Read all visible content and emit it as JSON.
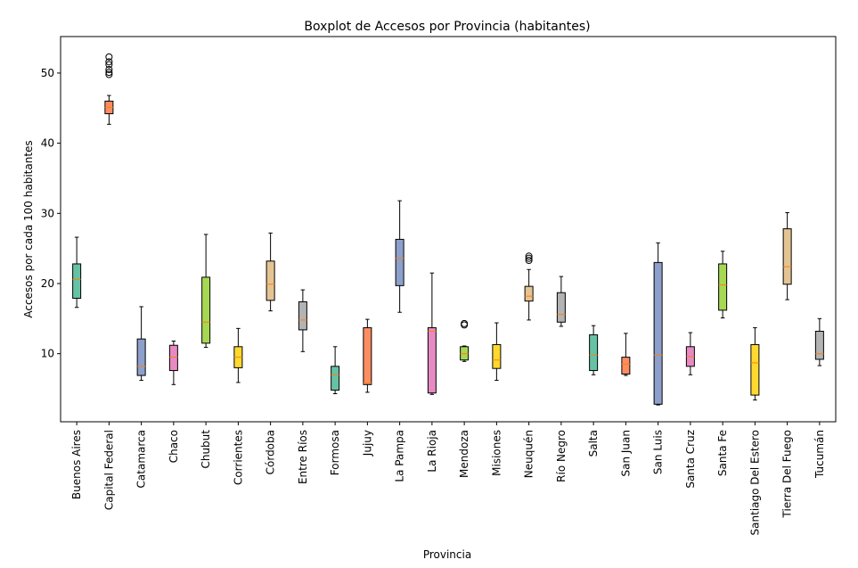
{
  "chart_data": {
    "type": "boxplot",
    "title": "Boxplot de Accesos por Provincia (habitantes)",
    "xlabel": "Provincia",
    "ylabel": "Accesos por cada 100 habitantes",
    "ylim": [
      0.3,
      55.2
    ],
    "yticks": [
      10,
      20,
      30,
      40,
      50
    ],
    "grid": false,
    "legend": "none",
    "categories": [
      "Buenos Aires",
      "Capital Federal",
      "Catamarca",
      "Chaco",
      "Chubut",
      "Corrientes",
      "Córdoba",
      "Entre Ríos",
      "Formosa",
      "Jujuy",
      "La Pampa",
      "La Rioja",
      "Mendoza",
      "Misiones",
      "Neuquén",
      "Río Negro",
      "Salta",
      "San Juan",
      "San Luis",
      "Santa Cruz",
      "Santa Fe",
      "Santiago Del Estero",
      "Tierra Del Fuego",
      "Tucumán"
    ],
    "colors": [
      "#66c2a5",
      "#fc8d62",
      "#8da0cb",
      "#e78ac3",
      "#a6d854",
      "#ffd92f",
      "#e5c494",
      "#b3b3b3",
      "#66c2a5",
      "#fc8d62",
      "#8da0cb",
      "#e78ac3",
      "#a6d854",
      "#ffd92f",
      "#e5c494",
      "#b3b3b3",
      "#66c2a5",
      "#fc8d62",
      "#8da0cb",
      "#e78ac3",
      "#a6d854",
      "#ffd92f",
      "#e5c494",
      "#b3b3b3"
    ],
    "median_color": "#ff7f0e",
    "boxes": [
      {
        "whislo": 16.6,
        "q1": 17.9,
        "med": 20.6,
        "q3": 22.8,
        "whishi": 26.6,
        "fliers": []
      },
      {
        "whislo": 42.7,
        "q1": 44.2,
        "med": 45.1,
        "q3": 46.0,
        "whishi": 46.8,
        "fliers": [
          49.8,
          50.1,
          50.5,
          51.2,
          51.6,
          52.3
        ]
      },
      {
        "whislo": 6.2,
        "q1": 6.9,
        "med": 8.2,
        "q3": 12.1,
        "whishi": 16.7,
        "fliers": []
      },
      {
        "whislo": 5.6,
        "q1": 7.6,
        "med": 9.5,
        "q3": 11.2,
        "whishi": 11.8,
        "fliers": []
      },
      {
        "whislo": 10.9,
        "q1": 11.5,
        "med": 14.5,
        "q3": 20.9,
        "whishi": 27.0,
        "fliers": []
      },
      {
        "whislo": 5.9,
        "q1": 8.0,
        "med": 9.5,
        "q3": 11.0,
        "whishi": 13.6,
        "fliers": []
      },
      {
        "whislo": 16.1,
        "q1": 17.6,
        "med": 19.9,
        "q3": 23.2,
        "whishi": 27.2,
        "fliers": []
      },
      {
        "whislo": 10.3,
        "q1": 13.4,
        "med": 14.8,
        "q3": 17.4,
        "whishi": 19.1,
        "fliers": []
      },
      {
        "whislo": 4.3,
        "q1": 4.8,
        "med": 7.0,
        "q3": 8.2,
        "whishi": 11.0,
        "fliers": []
      },
      {
        "whislo": 4.5,
        "q1": 5.6,
        "med": 5.8,
        "q3": 13.7,
        "whishi": 14.9,
        "fliers": []
      },
      {
        "whislo": 15.9,
        "q1": 19.7,
        "med": 23.6,
        "q3": 26.3,
        "whishi": 31.8,
        "fliers": []
      },
      {
        "whislo": 4.2,
        "q1": 4.4,
        "med": 13.2,
        "q3": 13.7,
        "whishi": 21.5,
        "fliers": []
      },
      {
        "whislo": 8.9,
        "q1": 9.1,
        "med": 10.0,
        "q3": 11.0,
        "whishi": 11.1,
        "fliers": [
          14.1,
          14.3
        ]
      },
      {
        "whislo": 6.2,
        "q1": 7.9,
        "med": 9.1,
        "q3": 11.3,
        "whishi": 14.4,
        "fliers": []
      },
      {
        "whislo": 14.8,
        "q1": 17.5,
        "med": 18.2,
        "q3": 19.6,
        "whishi": 22.0,
        "fliers": [
          23.3,
          23.6,
          23.9
        ]
      },
      {
        "whislo": 13.9,
        "q1": 14.5,
        "med": 15.6,
        "q3": 18.7,
        "whishi": 21.0,
        "fliers": []
      },
      {
        "whislo": 7.0,
        "q1": 7.6,
        "med": 9.8,
        "q3": 12.7,
        "whishi": 14.0,
        "fliers": []
      },
      {
        "whislo": 6.9,
        "q1": 7.1,
        "med": 8.5,
        "q3": 9.5,
        "whishi": 12.9,
        "fliers": []
      },
      {
        "whislo": 2.7,
        "q1": 2.8,
        "med": 9.8,
        "q3": 23.0,
        "whishi": 25.8,
        "fliers": []
      },
      {
        "whislo": 7.0,
        "q1": 8.2,
        "med": 9.6,
        "q3": 11.0,
        "whishi": 13.0,
        "fliers": []
      },
      {
        "whislo": 15.1,
        "q1": 16.2,
        "med": 19.8,
        "q3": 22.8,
        "whishi": 24.6,
        "fliers": []
      },
      {
        "whislo": 3.4,
        "q1": 4.1,
        "med": 8.7,
        "q3": 11.3,
        "whishi": 13.7,
        "fliers": []
      },
      {
        "whislo": 17.7,
        "q1": 19.9,
        "med": 22.4,
        "q3": 27.8,
        "whishi": 30.1,
        "fliers": []
      },
      {
        "whislo": 8.3,
        "q1": 9.2,
        "med": 10.0,
        "q3": 13.2,
        "whishi": 15.0,
        "fliers": []
      }
    ]
  }
}
